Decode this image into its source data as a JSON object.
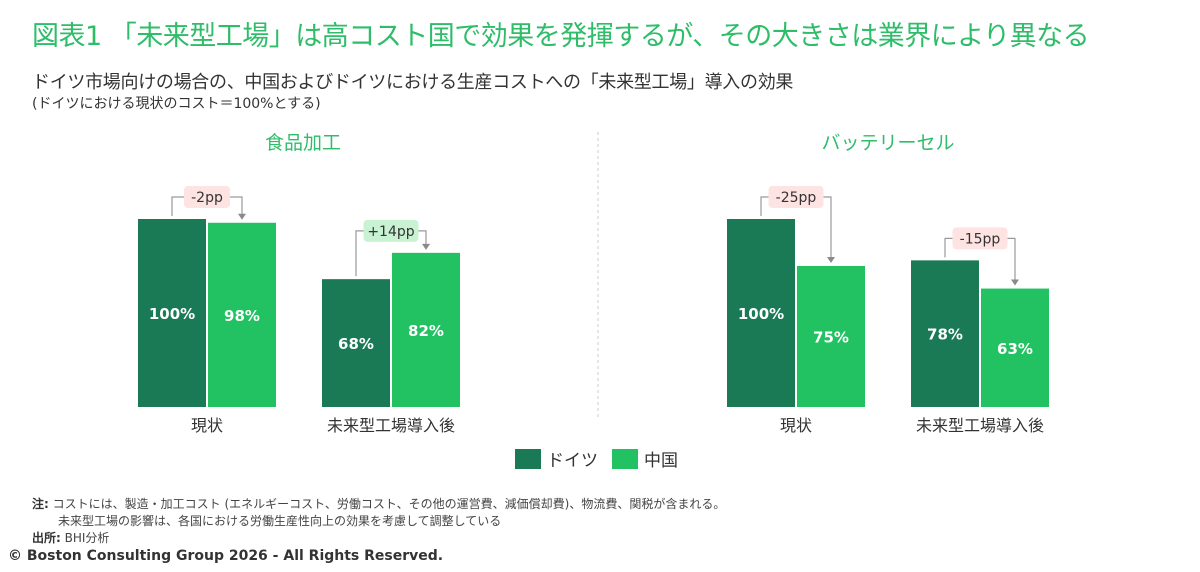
{
  "header": {
    "title": "図表1 「未来型工場」は高コスト国で効果を発揮するが、その大きさは業界により異なる",
    "subtitle": "ドイツ市場向けの場合の、中国およびドイツにおける生産コストへの「未来型工場」導入の効果",
    "subnote": "(ドイツにおける現状のコスト＝100%とする)"
  },
  "legend": {
    "germany": "ドイツ",
    "china": "中国"
  },
  "colors": {
    "germany": "#1a7a55",
    "china": "#22c161",
    "title": "#2fbd6a",
    "neg_badge_bg": "#fde3e1",
    "pos_badge_bg": "#c9f2d2"
  },
  "chart_data": [
    {
      "type": "bar",
      "title": "食品加工",
      "categories": [
        "現状",
        "未来型工場導入後"
      ],
      "series": [
        {
          "name": "ドイツ",
          "values": [
            100,
            68
          ]
        },
        {
          "name": "中国",
          "values": [
            98,
            82
          ]
        }
      ],
      "value_labels": [
        [
          "100%",
          "98%"
        ],
        [
          "68%",
          "82%"
        ]
      ],
      "deltas": [
        "-2pp",
        "+14pp"
      ],
      "ylim": [
        0,
        100
      ]
    },
    {
      "type": "bar",
      "title": "バッテリーセル",
      "categories": [
        "現状",
        "未来型工場導入後"
      ],
      "series": [
        {
          "name": "ドイツ",
          "values": [
            100,
            78
          ]
        },
        {
          "name": "中国",
          "values": [
            75,
            63
          ]
        }
      ],
      "value_labels": [
        [
          "100%",
          "75%"
        ],
        [
          "78%",
          "63%"
        ]
      ],
      "deltas": [
        "-25pp",
        "-15pp"
      ],
      "ylim": [
        0,
        100
      ]
    }
  ],
  "footnote": {
    "note_label": "注:",
    "note_line1": "コストには、製造・加工コスト (エネルギーコスト、労働コスト、その他の運営費、減価償却費)、物流費、関税が含まれる。",
    "note_line2": "未来型工場の影響は、各国における労働生産性向上の効果を考慮して調整している",
    "source_label": "出所:",
    "source_text": "BHI分析"
  },
  "copyright": "© Boston Consulting Group 2026 - All Rights Reserved."
}
